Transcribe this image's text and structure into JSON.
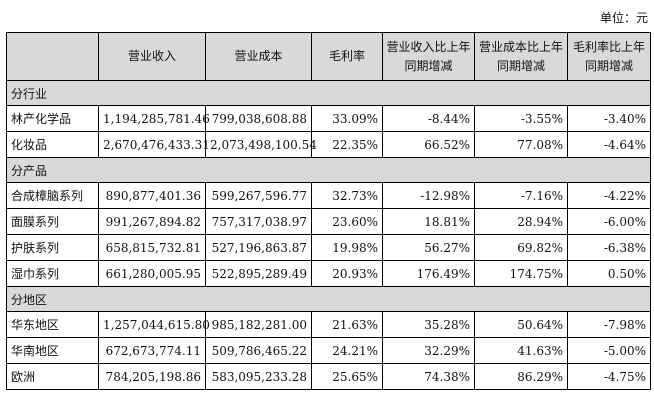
{
  "unit_label": "单位：元",
  "headers": [
    "",
    "营业收入",
    "营业成本",
    "毛利率",
    "营业收入比上年同期增减",
    "营业成本比上年同期增减",
    "毛利率比上年同期增减"
  ],
  "sections": [
    {
      "title": "分行业",
      "rows": [
        {
          "name": "林产化学品",
          "revenue": "1,194,285,781.46",
          "cost": "799,038,608.88",
          "margin": "33.09%",
          "revenue_change": "-8.44%",
          "cost_change": "-3.55%",
          "margin_change": "-3.40%"
        },
        {
          "name": "化妆品",
          "revenue": "2,670,476,433.31",
          "cost": "2,073,498,100.54",
          "margin": "22.35%",
          "revenue_change": "66.52%",
          "cost_change": "77.08%",
          "margin_change": "-4.64%"
        }
      ]
    },
    {
      "title": "分产品",
      "rows": [
        {
          "name": "合成樟脑系列",
          "revenue": "890,877,401.36",
          "cost": "599,267,596.77",
          "margin": "32.73%",
          "revenue_change": "-12.98%",
          "cost_change": "-7.16%",
          "margin_change": "-4.22%"
        },
        {
          "name": "面膜系列",
          "revenue": "991,267,894.82",
          "cost": "757,317,038.97",
          "margin": "23.60%",
          "revenue_change": "18.81%",
          "cost_change": "28.94%",
          "margin_change": "-6.00%"
        },
        {
          "name": "护肤系列",
          "revenue": "658,815,732.81",
          "cost": "527,196,863.87",
          "margin": "19.98%",
          "revenue_change": "56.27%",
          "cost_change": "69.82%",
          "margin_change": "-6.38%"
        },
        {
          "name": "湿巾系列",
          "revenue": "661,280,005.95",
          "cost": "522,895,289.49",
          "margin": "20.93%",
          "revenue_change": "176.49%",
          "cost_change": "174.75%",
          "margin_change": "0.50%"
        }
      ]
    },
    {
      "title": "分地区",
      "rows": [
        {
          "name": "华东地区",
          "revenue": "1,257,044,615.80",
          "cost": "985,182,281.00",
          "margin": "21.63%",
          "revenue_change": "35.28%",
          "cost_change": "50.64%",
          "margin_change": "-7.98%"
        },
        {
          "name": "华南地区",
          "revenue": "672,673,774.11",
          "cost": "509,786,465.22",
          "margin": "24.21%",
          "revenue_change": "32.29%",
          "cost_change": "41.63%",
          "margin_change": "-5.00%"
        },
        {
          "name": "欧洲",
          "revenue": "784,205,198.86",
          "cost": "583,095,233.28",
          "margin": "25.65%",
          "revenue_change": "74.38%",
          "cost_change": "86.29%",
          "margin_change": "-4.75%"
        }
      ]
    }
  ]
}
